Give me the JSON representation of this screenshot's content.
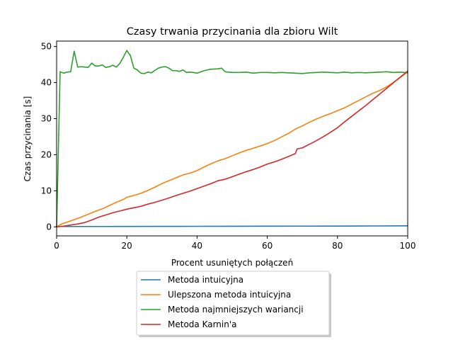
{
  "chart_data": {
    "type": "line",
    "title": "Czasy trwania przycinania dla zbioru Wilt",
    "xlabel": "Procent usuniętych połączeń",
    "ylabel": "Czas przycinania [s]",
    "xlim": [
      0,
      100
    ],
    "ylim": [
      -2.5,
      51.5
    ],
    "xticks": [
      0,
      20,
      40,
      60,
      80,
      100
    ],
    "yticks": [
      0,
      10,
      20,
      30,
      40,
      50
    ],
    "grid": false,
    "legend_position": "below plot, centered",
    "series": [
      {
        "name": "Metoda intuicyjna",
        "color": "#1f77b4",
        "x": [
          0,
          10,
          20,
          30,
          40,
          50,
          60,
          70,
          80,
          90,
          100
        ],
        "y": [
          0.1,
          0.1,
          0.12,
          0.14,
          0.15,
          0.17,
          0.18,
          0.2,
          0.22,
          0.25,
          0.28
        ]
      },
      {
        "name": "Ulepszona metoda intuicyjna",
        "color": "#ff7f0e",
        "x": [
          0,
          1,
          2,
          3,
          5,
          7,
          9,
          11,
          13,
          15,
          17,
          19,
          20,
          22,
          24,
          26,
          28,
          30,
          32,
          34,
          36,
          38,
          40,
          42,
          44,
          46,
          48,
          50,
          52,
          54,
          56,
          58,
          60,
          62,
          64,
          66,
          68,
          70,
          72,
          74,
          76,
          78,
          80,
          82,
          84,
          86,
          88,
          90,
          92,
          94,
          96,
          98,
          100
        ],
        "y": [
          0,
          0.6,
          1.0,
          1.3,
          2.0,
          2.7,
          3.5,
          4.3,
          5.0,
          5.9,
          6.8,
          7.6,
          8.2,
          8.7,
          9.3,
          10.1,
          11.0,
          12.0,
          12.8,
          13.6,
          14.4,
          14.9,
          15.6,
          16.6,
          17.5,
          18.3,
          18.9,
          19.7,
          20.5,
          21.2,
          21.8,
          22.4,
          23.1,
          23.9,
          24.9,
          25.9,
          27.1,
          28.0,
          29.0,
          29.9,
          30.7,
          31.4,
          32.2,
          33.0,
          34.0,
          35.0,
          36.0,
          37.0,
          37.8,
          38.8,
          40.1,
          41.5,
          43.0
        ]
      },
      {
        "name": "Metoda najmniejszych wariancji",
        "color": "#2ca02c",
        "x": [
          0,
          1,
          2,
          3,
          4,
          5,
          6,
          7,
          8,
          9,
          10,
          11,
          12,
          13,
          14,
          15,
          16,
          17,
          18,
          19,
          20,
          21,
          22,
          23,
          24,
          25,
          26,
          27,
          28,
          29,
          30,
          31,
          32,
          33,
          34,
          35,
          36,
          37,
          38,
          39,
          40,
          42,
          44,
          46,
          47,
          48,
          50,
          52,
          54,
          56,
          58,
          60,
          62,
          64,
          66,
          68,
          70,
          72,
          74,
          76,
          78,
          80,
          82,
          84,
          86,
          88,
          90,
          92,
          94,
          96,
          98,
          100
        ],
        "y": [
          0,
          43.0,
          42.6,
          42.9,
          43.0,
          48.7,
          44.3,
          44.4,
          44.3,
          44.2,
          45.4,
          44.6,
          44.6,
          44.9,
          44.2,
          44.4,
          44.8,
          44.3,
          45.3,
          47.0,
          48.9,
          47.5,
          44.0,
          43.5,
          42.6,
          42.5,
          42.9,
          42.7,
          43.4,
          44.0,
          44.3,
          44.4,
          44.0,
          43.3,
          43.3,
          43.1,
          43.5,
          42.8,
          42.9,
          42.8,
          42.6,
          43.3,
          43.7,
          43.8,
          44.0,
          43.0,
          42.8,
          42.8,
          42.9,
          42.6,
          42.8,
          42.8,
          42.7,
          42.8,
          42.7,
          42.6,
          42.5,
          42.7,
          42.8,
          42.9,
          42.8,
          42.7,
          42.9,
          42.7,
          42.8,
          42.7,
          42.8,
          42.9,
          43.0,
          42.8,
          42.9,
          42.7
        ]
      },
      {
        "name": "Metoda Karnin'a",
        "color": "#d62728",
        "x": [
          0,
          2,
          4,
          6,
          8,
          10,
          12,
          14,
          16,
          18,
          20,
          22,
          24,
          26,
          28,
          30,
          32,
          34,
          36,
          38,
          40,
          42,
          44,
          46,
          48,
          50,
          52,
          54,
          56,
          58,
          60,
          62,
          64,
          66,
          68,
          68.5,
          70,
          72,
          74,
          76,
          78,
          80,
          82,
          84,
          86,
          88,
          90,
          92,
          94,
          96,
          98,
          100
        ],
        "y": [
          0,
          0.2,
          0.5,
          0.8,
          1.2,
          1.9,
          2.7,
          3.3,
          3.9,
          4.4,
          4.9,
          5.3,
          5.7,
          6.3,
          6.8,
          7.4,
          8.0,
          8.7,
          9.3,
          9.9,
          10.6,
          11.3,
          12.0,
          12.8,
          13.2,
          13.9,
          14.6,
          15.3,
          15.9,
          16.6,
          17.4,
          18.0,
          18.7,
          19.5,
          20.3,
          21.6,
          21.9,
          22.9,
          23.9,
          25.0,
          26.2,
          27.5,
          29.1,
          30.6,
          32.1,
          33.6,
          35.2,
          36.8,
          38.4,
          40.0,
          41.6,
          43.2
        ]
      }
    ]
  }
}
